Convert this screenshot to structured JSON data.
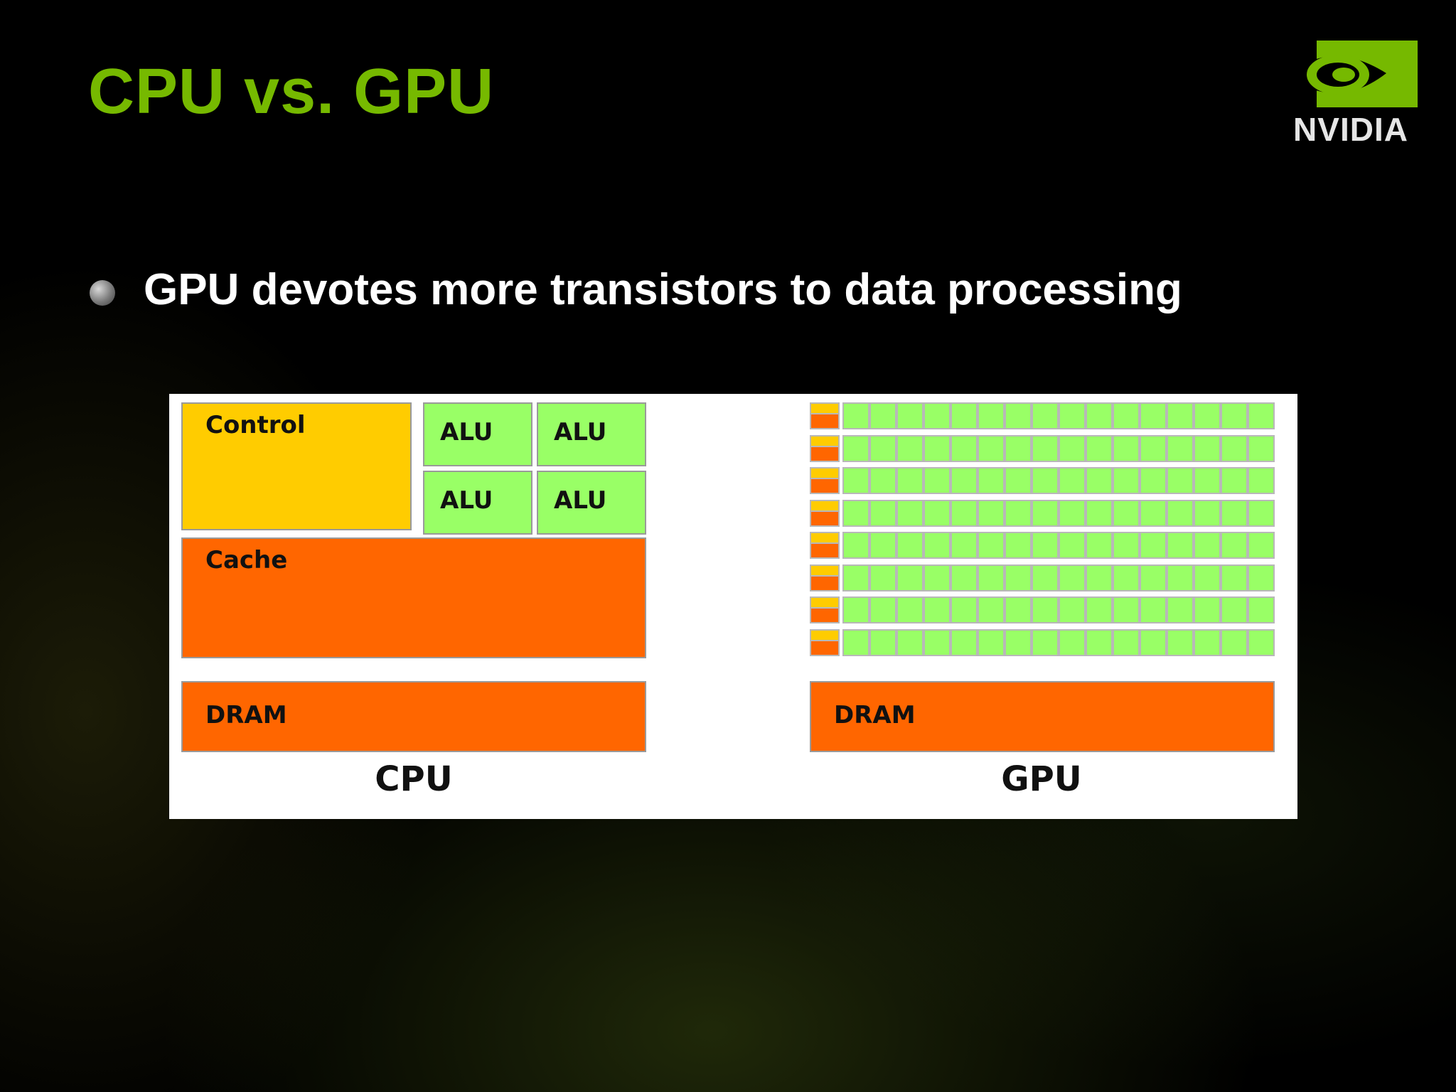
{
  "slide": {
    "title": "CPU vs. GPU",
    "bullet": "GPU devotes more transistors to data processing"
  },
  "logo": {
    "text": "NVIDIA",
    "icon": "nvidia-eye-icon"
  },
  "diagram": {
    "cpu": {
      "control": "Control",
      "alus": [
        "ALU",
        "ALU",
        "ALU",
        "ALU"
      ],
      "cache": "Cache",
      "dram": "DRAM",
      "caption": "CPU"
    },
    "gpu": {
      "rows": 8,
      "alus_per_row": 16,
      "dram": "DRAM",
      "caption": "GPU"
    }
  },
  "colors": {
    "title_green": "#76b900",
    "control": "#ffcc00",
    "alu": "#99ff66",
    "cache_dram": "#ff6600",
    "background": "#000000"
  }
}
